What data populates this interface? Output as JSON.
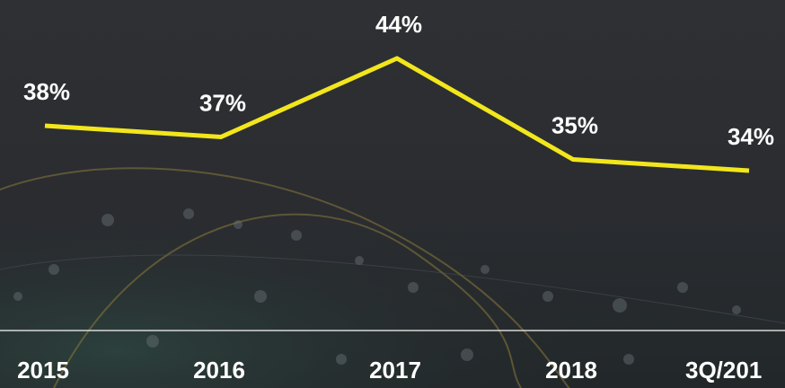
{
  "chart_data": {
    "type": "line",
    "categories": [
      "2015",
      "2016",
      "2017",
      "2018",
      "3Q/201"
    ],
    "series": [
      {
        "color": "#f2e61c",
        "values": [
          38,
          37,
          44,
          35,
          34
        ],
        "value_labels": [
          "38%",
          "37%",
          "44%",
          "35%",
          "34%"
        ]
      }
    ]
  }
}
